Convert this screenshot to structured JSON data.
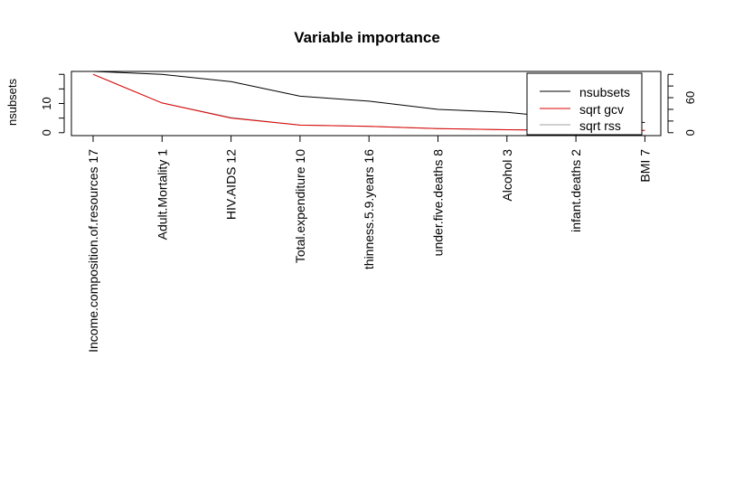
{
  "chart_data": {
    "type": "line",
    "title": "Variable importance",
    "ylabel_left": "nsubsets",
    "ylim_left": [
      -1,
      21
    ],
    "yticks_left": [
      0,
      10
    ],
    "ylim_right": [
      -5,
      105
    ],
    "yticks_right": [
      0,
      60
    ],
    "categories": [
      "Income.composition.of.resources  17",
      "Adult.Mortality  1",
      "HIV.AIDS  12",
      "Total.expenditure  10",
      "thinness.5.9.years  16",
      "under.five.deaths  8",
      "Alcohol  3",
      "infant.deaths  2",
      "BMI  7"
    ],
    "series": [
      {
        "name": "nsubsets",
        "axis": "left",
        "color": "#000000",
        "values": [
          21,
          20,
          17.5,
          12.5,
          10.8,
          8,
          7,
          4.7,
          3.5
        ]
      },
      {
        "name": "sqrt gcv",
        "axis": "right",
        "color": "#df0000",
        "values": [
          100,
          51,
          25,
          13,
          11,
          7,
          5,
          4,
          4
        ]
      },
      {
        "name": "sqrt rss",
        "axis": "right",
        "color": "#a0a0a0",
        "values": [
          100,
          51,
          26,
          13,
          11,
          7,
          5,
          4,
          4
        ]
      }
    ],
    "legend_position": "top-right"
  }
}
